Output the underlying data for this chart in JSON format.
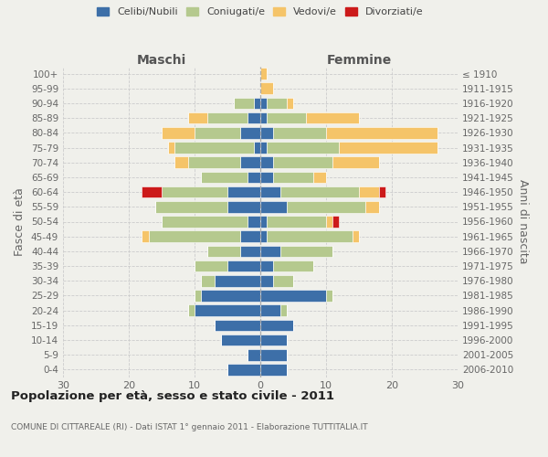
{
  "age_groups": [
    "0-4",
    "5-9",
    "10-14",
    "15-19",
    "20-24",
    "25-29",
    "30-34",
    "35-39",
    "40-44",
    "45-49",
    "50-54",
    "55-59",
    "60-64",
    "65-69",
    "70-74",
    "75-79",
    "80-84",
    "85-89",
    "90-94",
    "95-99",
    "100+"
  ],
  "birth_years": [
    "2006-2010",
    "2001-2005",
    "1996-2000",
    "1991-1995",
    "1986-1990",
    "1981-1985",
    "1976-1980",
    "1971-1975",
    "1966-1970",
    "1961-1965",
    "1956-1960",
    "1951-1955",
    "1946-1950",
    "1941-1945",
    "1936-1940",
    "1931-1935",
    "1926-1930",
    "1921-1925",
    "1916-1920",
    "1911-1915",
    "≤ 1910"
  ],
  "colors": {
    "celibi": "#3d6fa8",
    "coniugati": "#b5c98e",
    "vedovi": "#f5c469",
    "divorziati": "#cc1a1a"
  },
  "maschi": {
    "celibi": [
      5,
      2,
      6,
      7,
      10,
      9,
      7,
      5,
      3,
      3,
      2,
      5,
      5,
      2,
      3,
      1,
      3,
      2,
      1,
      0,
      0
    ],
    "coniugati": [
      0,
      0,
      0,
      0,
      1,
      1,
      2,
      5,
      5,
      14,
      13,
      11,
      10,
      7,
      8,
      12,
      7,
      6,
      3,
      0,
      0
    ],
    "vedovi": [
      0,
      0,
      0,
      0,
      0,
      0,
      0,
      0,
      0,
      1,
      0,
      0,
      0,
      0,
      2,
      1,
      5,
      3,
      0,
      0,
      0
    ],
    "divorziati": [
      0,
      0,
      0,
      0,
      0,
      0,
      0,
      0,
      0,
      0,
      0,
      0,
      3,
      0,
      0,
      0,
      0,
      0,
      0,
      0,
      0
    ]
  },
  "femmine": {
    "celibi": [
      4,
      4,
      4,
      5,
      3,
      10,
      2,
      2,
      3,
      1,
      1,
      4,
      3,
      2,
      2,
      1,
      2,
      1,
      1,
      0,
      0
    ],
    "coniugati": [
      0,
      0,
      0,
      0,
      1,
      1,
      3,
      6,
      8,
      13,
      9,
      12,
      12,
      6,
      9,
      11,
      8,
      6,
      3,
      0,
      0
    ],
    "vedovi": [
      0,
      0,
      0,
      0,
      0,
      0,
      0,
      0,
      0,
      1,
      1,
      2,
      3,
      2,
      7,
      15,
      17,
      8,
      1,
      2,
      1
    ],
    "divorziati": [
      0,
      0,
      0,
      0,
      0,
      0,
      0,
      0,
      0,
      0,
      1,
      0,
      1,
      0,
      0,
      0,
      0,
      0,
      0,
      0,
      0
    ]
  },
  "xlim": 30,
  "title": "Popolazione per età, sesso e stato civile - 2011",
  "subtitle": "COMUNE DI CITTAREALE (RI) - Dati ISTAT 1° gennaio 2011 - Elaborazione TUTTITALIA.IT",
  "ylabel_left": "Fasce di età",
  "ylabel_right": "Anni di nascita",
  "xlabel_maschi": "Maschi",
  "xlabel_femmine": "Femmine",
  "legend_labels": [
    "Celibi/Nubili",
    "Coniugati/e",
    "Vedovi/e",
    "Divorziati/e"
  ],
  "bg_color": "#f0f0eb"
}
